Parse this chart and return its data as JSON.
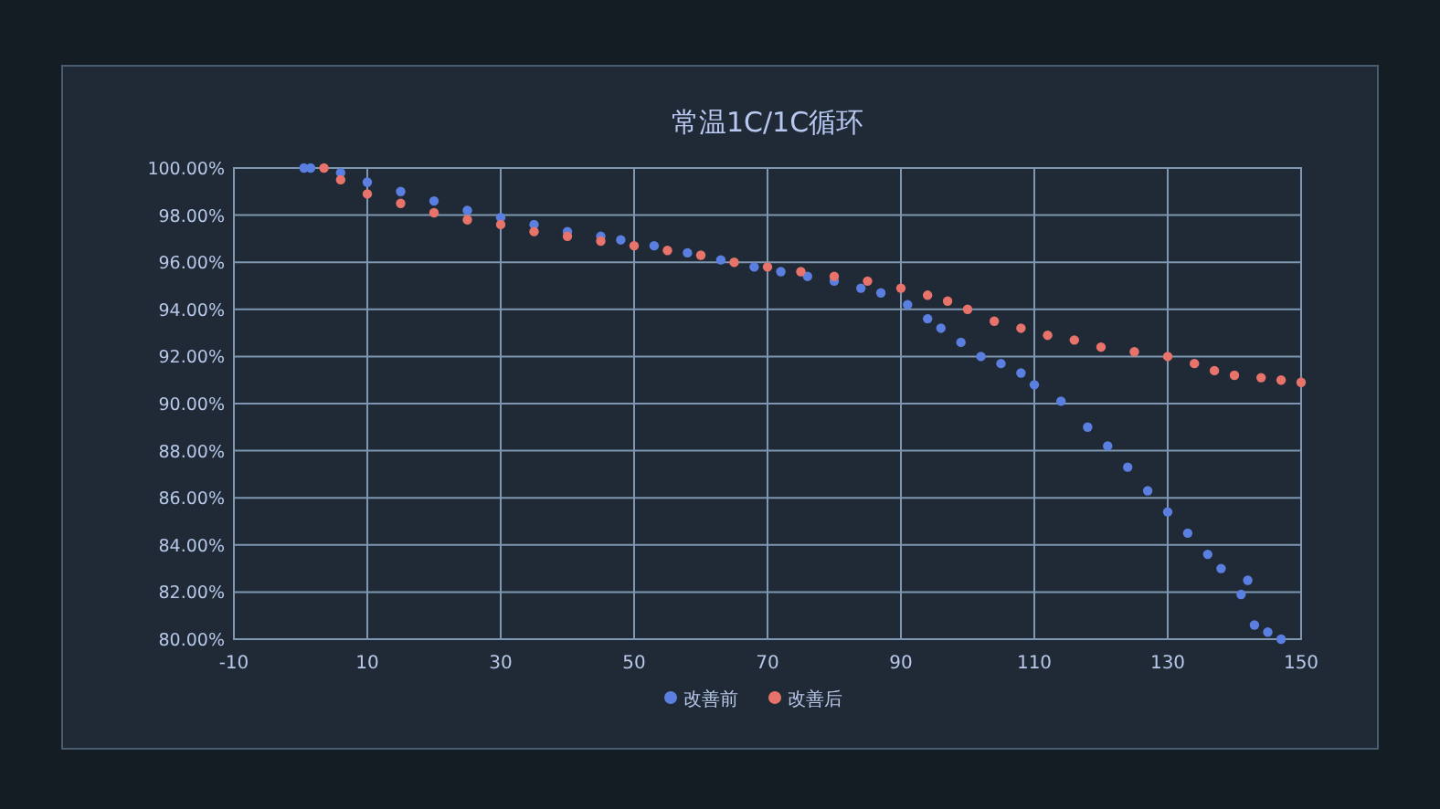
{
  "chart_data": {
    "type": "scatter",
    "title": "常温1C/1C循环",
    "marker": "circle",
    "grid": true,
    "legend": "bottom",
    "xlim": [
      -10,
      150
    ],
    "xticks": [
      -10,
      10,
      30,
      50,
      70,
      90,
      110,
      130,
      150
    ],
    "ylim": [
      80,
      100
    ],
    "yticks": [
      {
        "value": 80,
        "label": "80.00%"
      },
      {
        "value": 82,
        "label": "82.00%"
      },
      {
        "value": 84,
        "label": "84.00%"
      },
      {
        "value": 86,
        "label": "86.00%"
      },
      {
        "value": 88,
        "label": "88.00%"
      },
      {
        "value": 90,
        "label": "90.00%"
      },
      {
        "value": 92,
        "label": "92.00%"
      },
      {
        "value": 94,
        "label": "94.00%"
      },
      {
        "value": 96,
        "label": "96.00%"
      },
      {
        "value": 98,
        "label": "98.00%"
      },
      {
        "value": 100,
        "label": "100.00%"
      }
    ],
    "series": [
      {
        "name": "改善前",
        "color": "#5b7fe0",
        "x": [
          0.5,
          1.5,
          6,
          10,
          15,
          20,
          25,
          30,
          35,
          40,
          45,
          48,
          53,
          58,
          63,
          68,
          72,
          76,
          80,
          84,
          87,
          91,
          94,
          96,
          99,
          102,
          105,
          108,
          110,
          114,
          118,
          121,
          124,
          127,
          130,
          133,
          136,
          138,
          141,
          142,
          143,
          145,
          147
        ],
        "values": [
          100,
          100,
          99.8,
          99.4,
          99.0,
          98.6,
          98.2,
          97.9,
          97.6,
          97.3,
          97.1,
          96.95,
          96.7,
          96.4,
          96.1,
          95.8,
          95.6,
          95.4,
          95.2,
          94.9,
          94.7,
          94.2,
          93.6,
          93.2,
          92.6,
          92.0,
          91.7,
          91.3,
          90.8,
          90.1,
          89.0,
          88.2,
          87.3,
          86.3,
          85.4,
          84.5,
          83.6,
          83.0,
          81.9,
          82.5,
          80.6,
          80.3,
          80.0
        ]
      },
      {
        "name": "改善后",
        "color": "#e8736a",
        "x": [
          3.5,
          6,
          10,
          15,
          20,
          25,
          30,
          35,
          40,
          45,
          50,
          55,
          60,
          65,
          70,
          75,
          80,
          85,
          90,
          94,
          97,
          100,
          104,
          108,
          112,
          116,
          120,
          125,
          130,
          134,
          137,
          140,
          144,
          147,
          150
        ],
        "values": [
          100,
          99.5,
          98.9,
          98.5,
          98.1,
          97.8,
          97.6,
          97.3,
          97.1,
          96.9,
          96.7,
          96.5,
          96.3,
          96.0,
          95.8,
          95.6,
          95.4,
          95.2,
          94.9,
          94.6,
          94.35,
          94.0,
          93.5,
          93.2,
          92.9,
          92.7,
          92.4,
          92.2,
          92.0,
          91.7,
          91.4,
          91.2,
          91.1,
          91.0,
          90.9
        ]
      }
    ]
  }
}
